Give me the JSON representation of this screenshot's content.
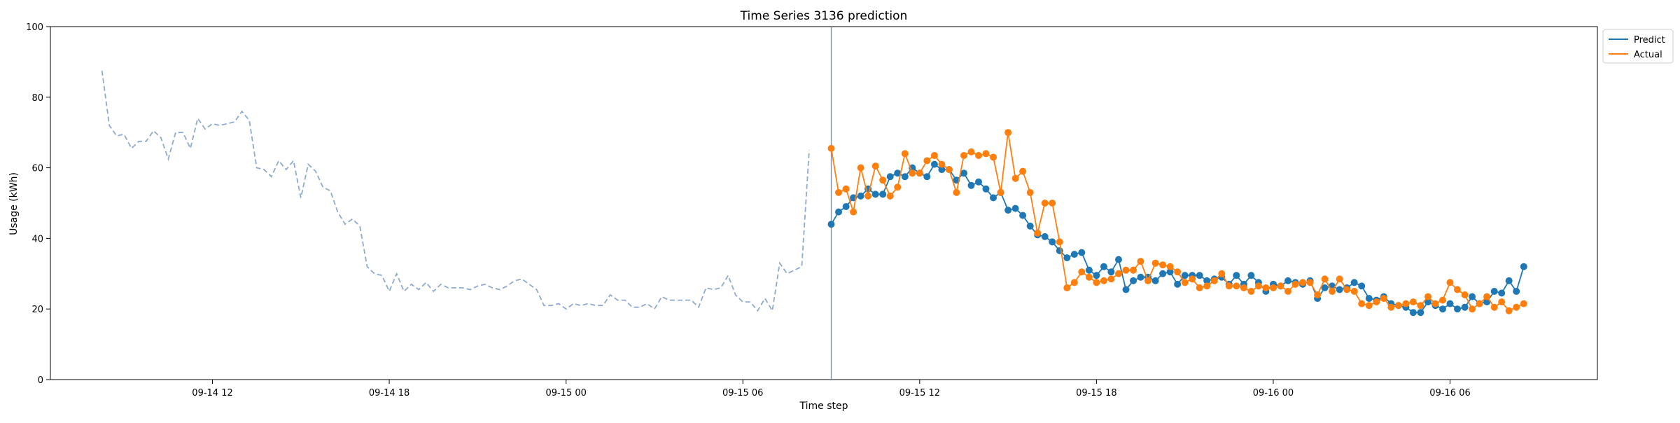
{
  "chart_data": {
    "type": "line",
    "title": "Time Series 3136 prediction",
    "xlabel": "Time step",
    "ylabel": "Usage (kWh)",
    "ylim": [
      0,
      100
    ],
    "yticks": [
      0,
      20,
      40,
      60,
      80,
      100
    ],
    "x_start": "2024-09-14 08:15",
    "x_end": "2024-09-16 10:15",
    "x_step_minutes": 15,
    "xlim": [
      "2024-09-14 06:30",
      "2024-09-16 11:00"
    ],
    "xticks": [
      {
        "label": "09-14 12",
        "x": "2024-09-14 12:00"
      },
      {
        "label": "09-14 18",
        "x": "2024-09-14 18:00"
      },
      {
        "label": "09-15 00",
        "x": "2024-09-15 00:00"
      },
      {
        "label": "09-15 06",
        "x": "2024-09-15 06:00"
      },
      {
        "label": "09-15 12",
        "x": "2024-09-15 12:00"
      },
      {
        "label": "09-15 18",
        "x": "2024-09-15 18:00"
      },
      {
        "label": "09-16 00",
        "x": "2024-09-16 00:00"
      },
      {
        "label": "09-16 06",
        "x": "2024-09-16 06:00"
      }
    ],
    "forecast_start": "2024-09-15 09:00",
    "legend_position": "top-right (outside)",
    "history": {
      "style": "dashed",
      "color": "#8fa9cf",
      "x_start": "2024-09-14 08:15",
      "values": [
        87.5,
        72,
        69,
        69.5,
        65.5,
        67.5,
        67.5,
        70.5,
        68.5,
        62.5,
        70,
        70,
        65.5,
        74,
        71,
        72.5,
        72,
        72.5,
        73,
        76,
        73.5,
        60,
        59.5,
        57.5,
        62,
        59.5,
        62,
        51.5,
        61,
        59,
        54.5,
        53.5,
        47.5,
        44,
        45.5,
        43.5,
        32,
        30,
        29.5,
        25,
        30,
        25,
        27,
        25.5,
        27.5,
        25,
        27,
        26,
        26,
        26,
        25.5,
        26.5,
        27,
        26,
        25.5,
        26.5,
        28,
        28.5,
        27,
        25.5,
        21,
        21,
        21.5,
        20,
        21.5,
        21,
        21.5,
        21,
        21,
        24,
        22.5,
        22.5,
        20.5,
        20.5,
        21.5,
        20,
        23.5,
        22.5,
        22.5,
        22.5,
        22.5,
        20.5,
        26,
        25.5,
        26,
        29.5,
        24,
        22,
        22,
        19.5,
        23,
        19.5,
        33,
        30,
        31,
        32,
        65
      ]
    },
    "series": [
      {
        "name": "Predict",
        "color": "#1f77b4",
        "x_start": "2024-09-15 09:00",
        "values": [
          44,
          47.5,
          49,
          51.5,
          52,
          54,
          52.5,
          52.5,
          57.5,
          58.5,
          57.5,
          60,
          58.5,
          57.5,
          61,
          59.5,
          59.5,
          56.5,
          58.5,
          55,
          56,
          54,
          51.5,
          53,
          48,
          48.5,
          46.5,
          43.5,
          41,
          40.5,
          39,
          36.5,
          34.5,
          35.5,
          36,
          31,
          29.5,
          32,
          30.5,
          34,
          25.5,
          28,
          29,
          29,
          28,
          30,
          30.5,
          27,
          29.5,
          29.5,
          29.5,
          28,
          28.5,
          29,
          27,
          29.5,
          27,
          29.5,
          27.5,
          25,
          27,
          26.5,
          28,
          27.5,
          27,
          28,
          23,
          26,
          26.5,
          25.5,
          26,
          27.5,
          26.5,
          23,
          22.5,
          23.5,
          21.5,
          21,
          20.5,
          19,
          19,
          22,
          21,
          20,
          21.5,
          20,
          20.5,
          23.5,
          21.5,
          22,
          25,
          24.5,
          28,
          25,
          32
        ]
      },
      {
        "name": "Actual",
        "color": "#ff7f0e",
        "x_start": "2024-09-15 09:00",
        "values": [
          65.5,
          53,
          54,
          47.5,
          60,
          52,
          60.5,
          56.5,
          52,
          54.5,
          64,
          58.5,
          58.5,
          62,
          63.5,
          61,
          59.5,
          53,
          63.5,
          64.5,
          63.5,
          64,
          63,
          53,
          70,
          57,
          59,
          53,
          41.5,
          50,
          50,
          39,
          26,
          27.5,
          30.5,
          29,
          27.5,
          28,
          28.5,
          30,
          31,
          31,
          33.5,
          28,
          33,
          32.5,
          32,
          30.5,
          27.5,
          28.5,
          26,
          26.5,
          28,
          30,
          26.5,
          26.5,
          26,
          25,
          26.5,
          26,
          26,
          26.5,
          25,
          27,
          27.5,
          27.5,
          24,
          28.5,
          25,
          28.5,
          25.5,
          25,
          21.5,
          21,
          22,
          23,
          20.5,
          21,
          21.5,
          22,
          21,
          23.5,
          21.5,
          22.5,
          27.5,
          25.5,
          24,
          20,
          21.5,
          23.5,
          20.5,
          22,
          19.5,
          20.5,
          21.5
        ]
      }
    ]
  }
}
